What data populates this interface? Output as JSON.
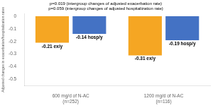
{
  "chart_data": {
    "type": "bar",
    "categories": [
      "600 mg/d of N-AC\n(n=252)",
      "1200 mg/d of N-AC\n(n=116)"
    ],
    "series": [
      {
        "color": "#F5A623",
        "values": [
          -0.21,
          -0.31
        ],
        "value_labels": [
          "-0.21 ex/y",
          "-0.31 ex/y"
        ]
      },
      {
        "color": "#4472C4",
        "values": [
          -0.14,
          -0.19
        ],
        "value_labels": [
          "-0.14 hosp/y",
          "-0.19 hosp/y"
        ]
      }
    ],
    "ylabel": "Adjusted changes in exacerbation/hospitalization rates",
    "annotations": [
      "p=0.019 (intergroup changes of adjusted exacerbation rate)",
      "p=0.059 (intergroup changes of adjusted hospitalization rate)"
    ],
    "ylim": [
      -0.55,
      0.02
    ],
    "yticks": [
      -0.5,
      -0.4,
      -0.3,
      -0.2,
      -0.1,
      0
    ],
    "grid": false,
    "data_labels": true
  }
}
